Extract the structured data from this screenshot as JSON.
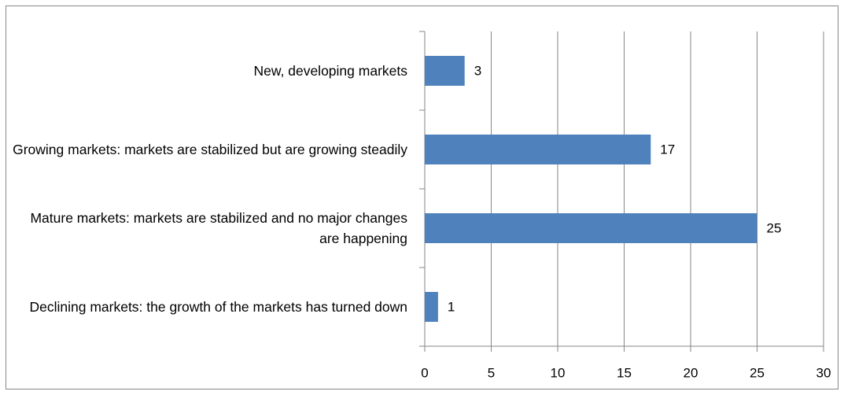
{
  "chart_data": {
    "type": "barh",
    "categories": [
      "New, developing markets",
      "Growing markets: markets are stabilized but are growing steadily",
      "Mature markets: markets are stabilized and no major changes are happening",
      "Declining markets: the growth of the markets has turned down"
    ],
    "values": [
      3,
      17,
      25,
      1
    ],
    "color": "#4f81bd",
    "xlim": [
      0,
      30
    ],
    "xticks": [
      0,
      5,
      10,
      15,
      20,
      25,
      30
    ],
    "grid": true,
    "data_labels": true
  }
}
